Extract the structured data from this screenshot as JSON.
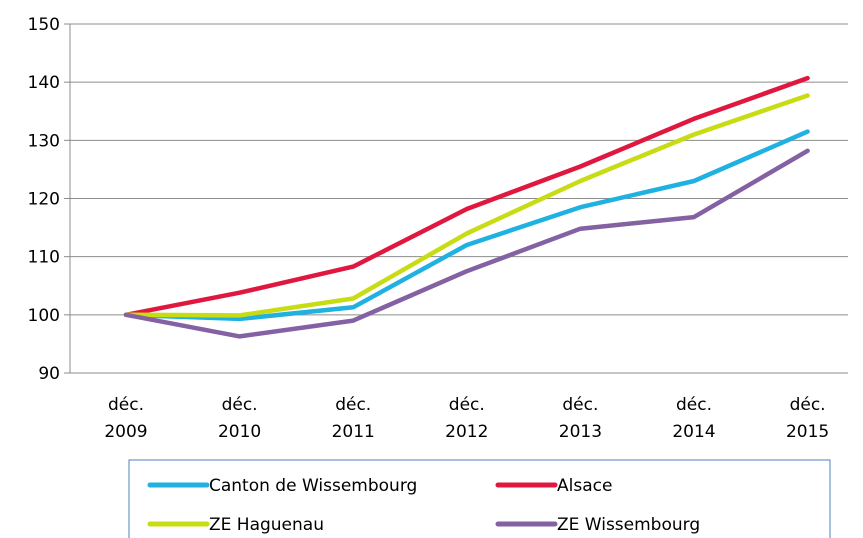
{
  "chart_data": {
    "type": "line",
    "title": "",
    "xlabel": "",
    "ylabel": "",
    "categories": [
      [
        "déc.",
        "2009"
      ],
      [
        "déc.",
        "2010"
      ],
      [
        "déc.",
        "2011"
      ],
      [
        "déc.",
        "2012"
      ],
      [
        "déc.",
        "2013"
      ],
      [
        "déc.",
        "2014"
      ],
      [
        "déc.",
        "2015"
      ]
    ],
    "ylim": [
      90,
      150
    ],
    "yticks": [
      90,
      100,
      110,
      120,
      130,
      140,
      150
    ],
    "grid": true,
    "legend_position": "bottom",
    "series": [
      {
        "name": "Canton de Wissembourg",
        "color": "#1fb1e1",
        "values": [
          100,
          99.3,
          101.3,
          112,
          118.5,
          123,
          131.5
        ]
      },
      {
        "name": "Alsace",
        "color": "#e0183f",
        "values": [
          100,
          103.8,
          108.3,
          118.2,
          125.5,
          133.7,
          140.7
        ]
      },
      {
        "name": "ZE Haguenau",
        "color": "#c8dc14",
        "values": [
          100,
          99.9,
          102.8,
          114,
          123,
          131,
          137.7
        ]
      },
      {
        "name": "ZE Wissembourg",
        "color": "#8461a2",
        "values": [
          100,
          96.3,
          99,
          107.5,
          114.8,
          116.8,
          128.2
        ]
      }
    ]
  }
}
